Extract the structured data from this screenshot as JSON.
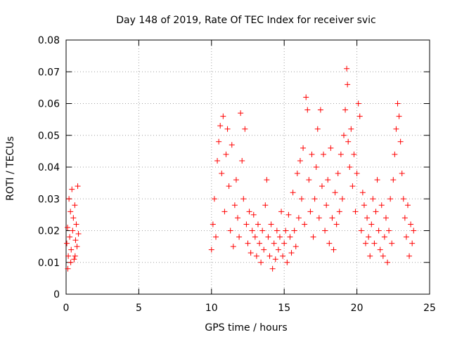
{
  "chart_data": {
    "type": "scatter",
    "title": "Day 148 of 2019, Rate Of TEC Index for receiver svic",
    "xlabel": "GPS time / hours",
    "ylabel": "ROTI / TECUs",
    "xlim": [
      0,
      25
    ],
    "ylim": [
      0,
      0.08
    ],
    "xticks": [
      0,
      5,
      10,
      15,
      20,
      25
    ],
    "yticks": [
      0,
      0.01,
      0.02,
      0.03,
      0.04,
      0.05,
      0.06,
      0.07,
      0.08
    ],
    "xtick_labels": [
      "0",
      "5",
      "10",
      "15",
      "20",
      "25"
    ],
    "ytick_labels": [
      "0",
      "0.01",
      "0.02",
      "0.03",
      "0.04",
      "0.05",
      "0.06",
      "0.07",
      "0.08"
    ],
    "grid": true,
    "marker": "+",
    "series": [
      {
        "name": "ROTI",
        "color": "#ff0000",
        "points": [
          [
            0.05,
            0.016
          ],
          [
            0.1,
            0.021
          ],
          [
            0.15,
            0.012
          ],
          [
            0.2,
            0.03
          ],
          [
            0.25,
            0.018
          ],
          [
            0.3,
            0.026
          ],
          [
            0.35,
            0.014
          ],
          [
            0.4,
            0.033
          ],
          [
            0.45,
            0.02
          ],
          [
            0.5,
            0.024
          ],
          [
            0.55,
            0.011
          ],
          [
            0.6,
            0.028
          ],
          [
            0.65,
            0.017
          ],
          [
            0.7,
            0.022
          ],
          [
            0.75,
            0.015
          ],
          [
            0.8,
            0.034
          ],
          [
            0.85,
            0.019
          ],
          [
            0.12,
            0.008
          ],
          [
            0.32,
            0.01
          ],
          [
            0.62,
            0.012
          ],
          [
            10.0,
            0.014
          ],
          [
            10.1,
            0.022
          ],
          [
            10.2,
            0.03
          ],
          [
            10.3,
            0.018
          ],
          [
            10.4,
            0.042
          ],
          [
            10.5,
            0.048
          ],
          [
            10.6,
            0.053
          ],
          [
            10.7,
            0.038
          ],
          [
            10.8,
            0.056
          ],
          [
            10.9,
            0.026
          ],
          [
            11.0,
            0.044
          ],
          [
            11.1,
            0.052
          ],
          [
            11.2,
            0.034
          ],
          [
            11.3,
            0.02
          ],
          [
            11.4,
            0.047
          ],
          [
            11.5,
            0.015
          ],
          [
            11.6,
            0.028
          ],
          [
            11.7,
            0.036
          ],
          [
            11.8,
            0.024
          ],
          [
            11.9,
            0.018
          ],
          [
            12.0,
            0.057
          ],
          [
            12.1,
            0.042
          ],
          [
            12.2,
            0.03
          ],
          [
            12.3,
            0.052
          ],
          [
            12.4,
            0.022
          ],
          [
            12.5,
            0.016
          ],
          [
            12.6,
            0.026
          ],
          [
            12.7,
            0.013
          ],
          [
            12.8,
            0.02
          ],
          [
            12.9,
            0.025
          ],
          [
            13.0,
            0.018
          ],
          [
            13.1,
            0.012
          ],
          [
            13.2,
            0.022
          ],
          [
            13.3,
            0.016
          ],
          [
            13.4,
            0.01
          ],
          [
            13.5,
            0.02
          ],
          [
            13.6,
            0.014
          ],
          [
            13.7,
            0.028
          ],
          [
            13.8,
            0.036
          ],
          [
            13.9,
            0.018
          ],
          [
            14.0,
            0.012
          ],
          [
            14.1,
            0.022
          ],
          [
            14.2,
            0.008
          ],
          [
            14.3,
            0.016
          ],
          [
            14.4,
            0.011
          ],
          [
            14.5,
            0.02
          ],
          [
            14.6,
            0.014
          ],
          [
            14.7,
            0.018
          ],
          [
            14.8,
            0.026
          ],
          [
            14.9,
            0.012
          ],
          [
            15.0,
            0.016
          ],
          [
            15.1,
            0.02
          ],
          [
            15.2,
            0.01
          ],
          [
            15.3,
            0.025
          ],
          [
            15.4,
            0.018
          ],
          [
            15.5,
            0.013
          ],
          [
            15.6,
            0.032
          ],
          [
            15.7,
            0.02
          ],
          [
            15.8,
            0.015
          ],
          [
            15.9,
            0.038
          ],
          [
            16.0,
            0.024
          ],
          [
            16.1,
            0.042
          ],
          [
            16.2,
            0.03
          ],
          [
            16.3,
            0.046
          ],
          [
            16.4,
            0.022
          ],
          [
            16.5,
            0.062
          ],
          [
            16.6,
            0.058
          ],
          [
            16.7,
            0.036
          ],
          [
            16.8,
            0.026
          ],
          [
            16.9,
            0.044
          ],
          [
            17.0,
            0.018
          ],
          [
            17.1,
            0.03
          ],
          [
            17.2,
            0.04
          ],
          [
            17.3,
            0.052
          ],
          [
            17.4,
            0.024
          ],
          [
            17.5,
            0.058
          ],
          [
            17.6,
            0.034
          ],
          [
            17.7,
            0.044
          ],
          [
            17.8,
            0.02
          ],
          [
            17.9,
            0.028
          ],
          [
            18.0,
            0.036
          ],
          [
            18.1,
            0.016
          ],
          [
            18.2,
            0.046
          ],
          [
            18.3,
            0.024
          ],
          [
            18.4,
            0.014
          ],
          [
            18.5,
            0.032
          ],
          [
            18.6,
            0.022
          ],
          [
            18.7,
            0.038
          ],
          [
            18.8,
            0.026
          ],
          [
            18.9,
            0.044
          ],
          [
            19.0,
            0.03
          ],
          [
            19.1,
            0.05
          ],
          [
            19.2,
            0.058
          ],
          [
            19.3,
            0.071
          ],
          [
            19.35,
            0.066
          ],
          [
            19.4,
            0.048
          ],
          [
            19.5,
            0.04
          ],
          [
            19.6,
            0.052
          ],
          [
            19.7,
            0.034
          ],
          [
            19.8,
            0.044
          ],
          [
            19.9,
            0.026
          ],
          [
            20.0,
            0.038
          ],
          [
            20.1,
            0.06
          ],
          [
            20.2,
            0.056
          ],
          [
            20.3,
            0.02
          ],
          [
            20.4,
            0.032
          ],
          [
            20.5,
            0.028
          ],
          [
            20.6,
            0.016
          ],
          [
            20.7,
            0.024
          ],
          [
            20.8,
            0.018
          ],
          [
            20.9,
            0.012
          ],
          [
            21.0,
            0.022
          ],
          [
            21.1,
            0.03
          ],
          [
            21.2,
            0.016
          ],
          [
            21.3,
            0.026
          ],
          [
            21.4,
            0.036
          ],
          [
            21.5,
            0.02
          ],
          [
            21.6,
            0.014
          ],
          [
            21.7,
            0.028
          ],
          [
            21.8,
            0.012
          ],
          [
            21.9,
            0.018
          ],
          [
            22.0,
            0.024
          ],
          [
            22.1,
            0.01
          ],
          [
            22.2,
            0.02
          ],
          [
            22.3,
            0.03
          ],
          [
            22.4,
            0.016
          ],
          [
            22.5,
            0.036
          ],
          [
            22.6,
            0.044
          ],
          [
            22.7,
            0.052
          ],
          [
            22.8,
            0.06
          ],
          [
            22.9,
            0.056
          ],
          [
            23.0,
            0.048
          ],
          [
            23.1,
            0.038
          ],
          [
            23.2,
            0.03
          ],
          [
            23.3,
            0.024
          ],
          [
            23.4,
            0.018
          ],
          [
            23.5,
            0.028
          ],
          [
            23.6,
            0.012
          ],
          [
            23.7,
            0.022
          ],
          [
            23.8,
            0.016
          ],
          [
            23.9,
            0.02
          ]
        ]
      }
    ]
  }
}
